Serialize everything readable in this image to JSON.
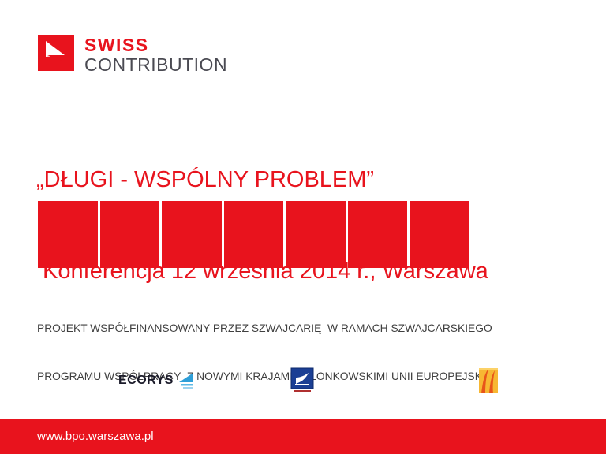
{
  "logo": {
    "line1": "SWISS",
    "line2": "CONTRIBUTION"
  },
  "title": {
    "line1": "„DŁUGI - WSPÓLNY PROBLEM”",
    "line2": " Konferencja 12 września 2014 r., Warszawa"
  },
  "banner": {
    "segments": 7
  },
  "funding_note": {
    "line1": "PROJEKT WSPÓŁFINANSOWANY PRZEZ SZWAJCARIĘ  W RAMACH SZWAJCARSKIEGO",
    "line2": "PROGRAMU WSPÓŁPRACY  Z NOWYMI KRAJAMI CZŁONKOWSKIMI UNII EUROPEJSKIEJ"
  },
  "partners": {
    "ecorys_label": "ECORYS"
  },
  "footer": {
    "url": "www.bpo.warszawa.pl"
  },
  "colors": {
    "red": "#e8131d",
    "text_dark": "#3f3f3f",
    "swiss_gray": "#4a4a52",
    "ecorys_blue": "#2e9fd8",
    "flag_blue": "#1b3f94",
    "orange": "#f29c1f"
  }
}
